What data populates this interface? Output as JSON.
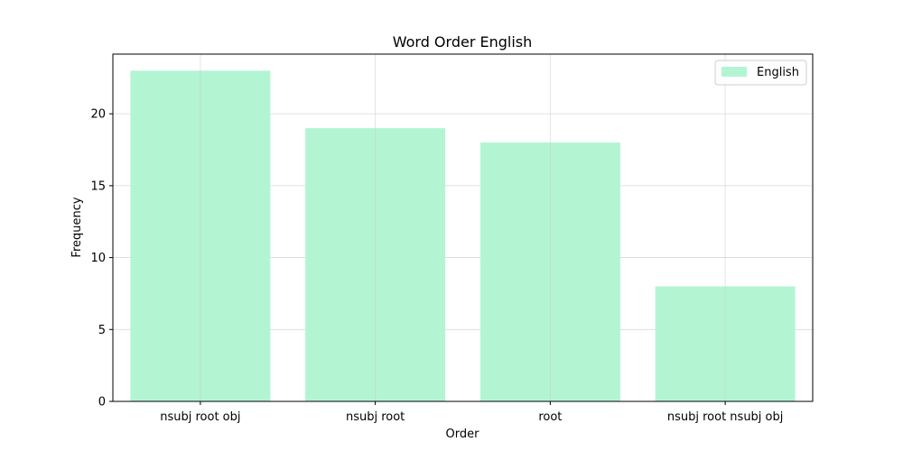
{
  "chart_data": {
    "type": "bar",
    "title": "Word Order English",
    "xlabel": "Order",
    "ylabel": "Frequency",
    "categories": [
      "nsubj root obj",
      "nsubj root",
      "root",
      "nsubj root nsubj obj"
    ],
    "series": [
      {
        "name": "English",
        "values": [
          23,
          19,
          18,
          8
        ],
        "color": "#b3f5d3"
      }
    ],
    "ylim": [
      0,
      24.15
    ],
    "yticks": [
      0,
      5,
      10,
      15,
      20
    ],
    "grid": true,
    "legend_position": "top-right"
  }
}
